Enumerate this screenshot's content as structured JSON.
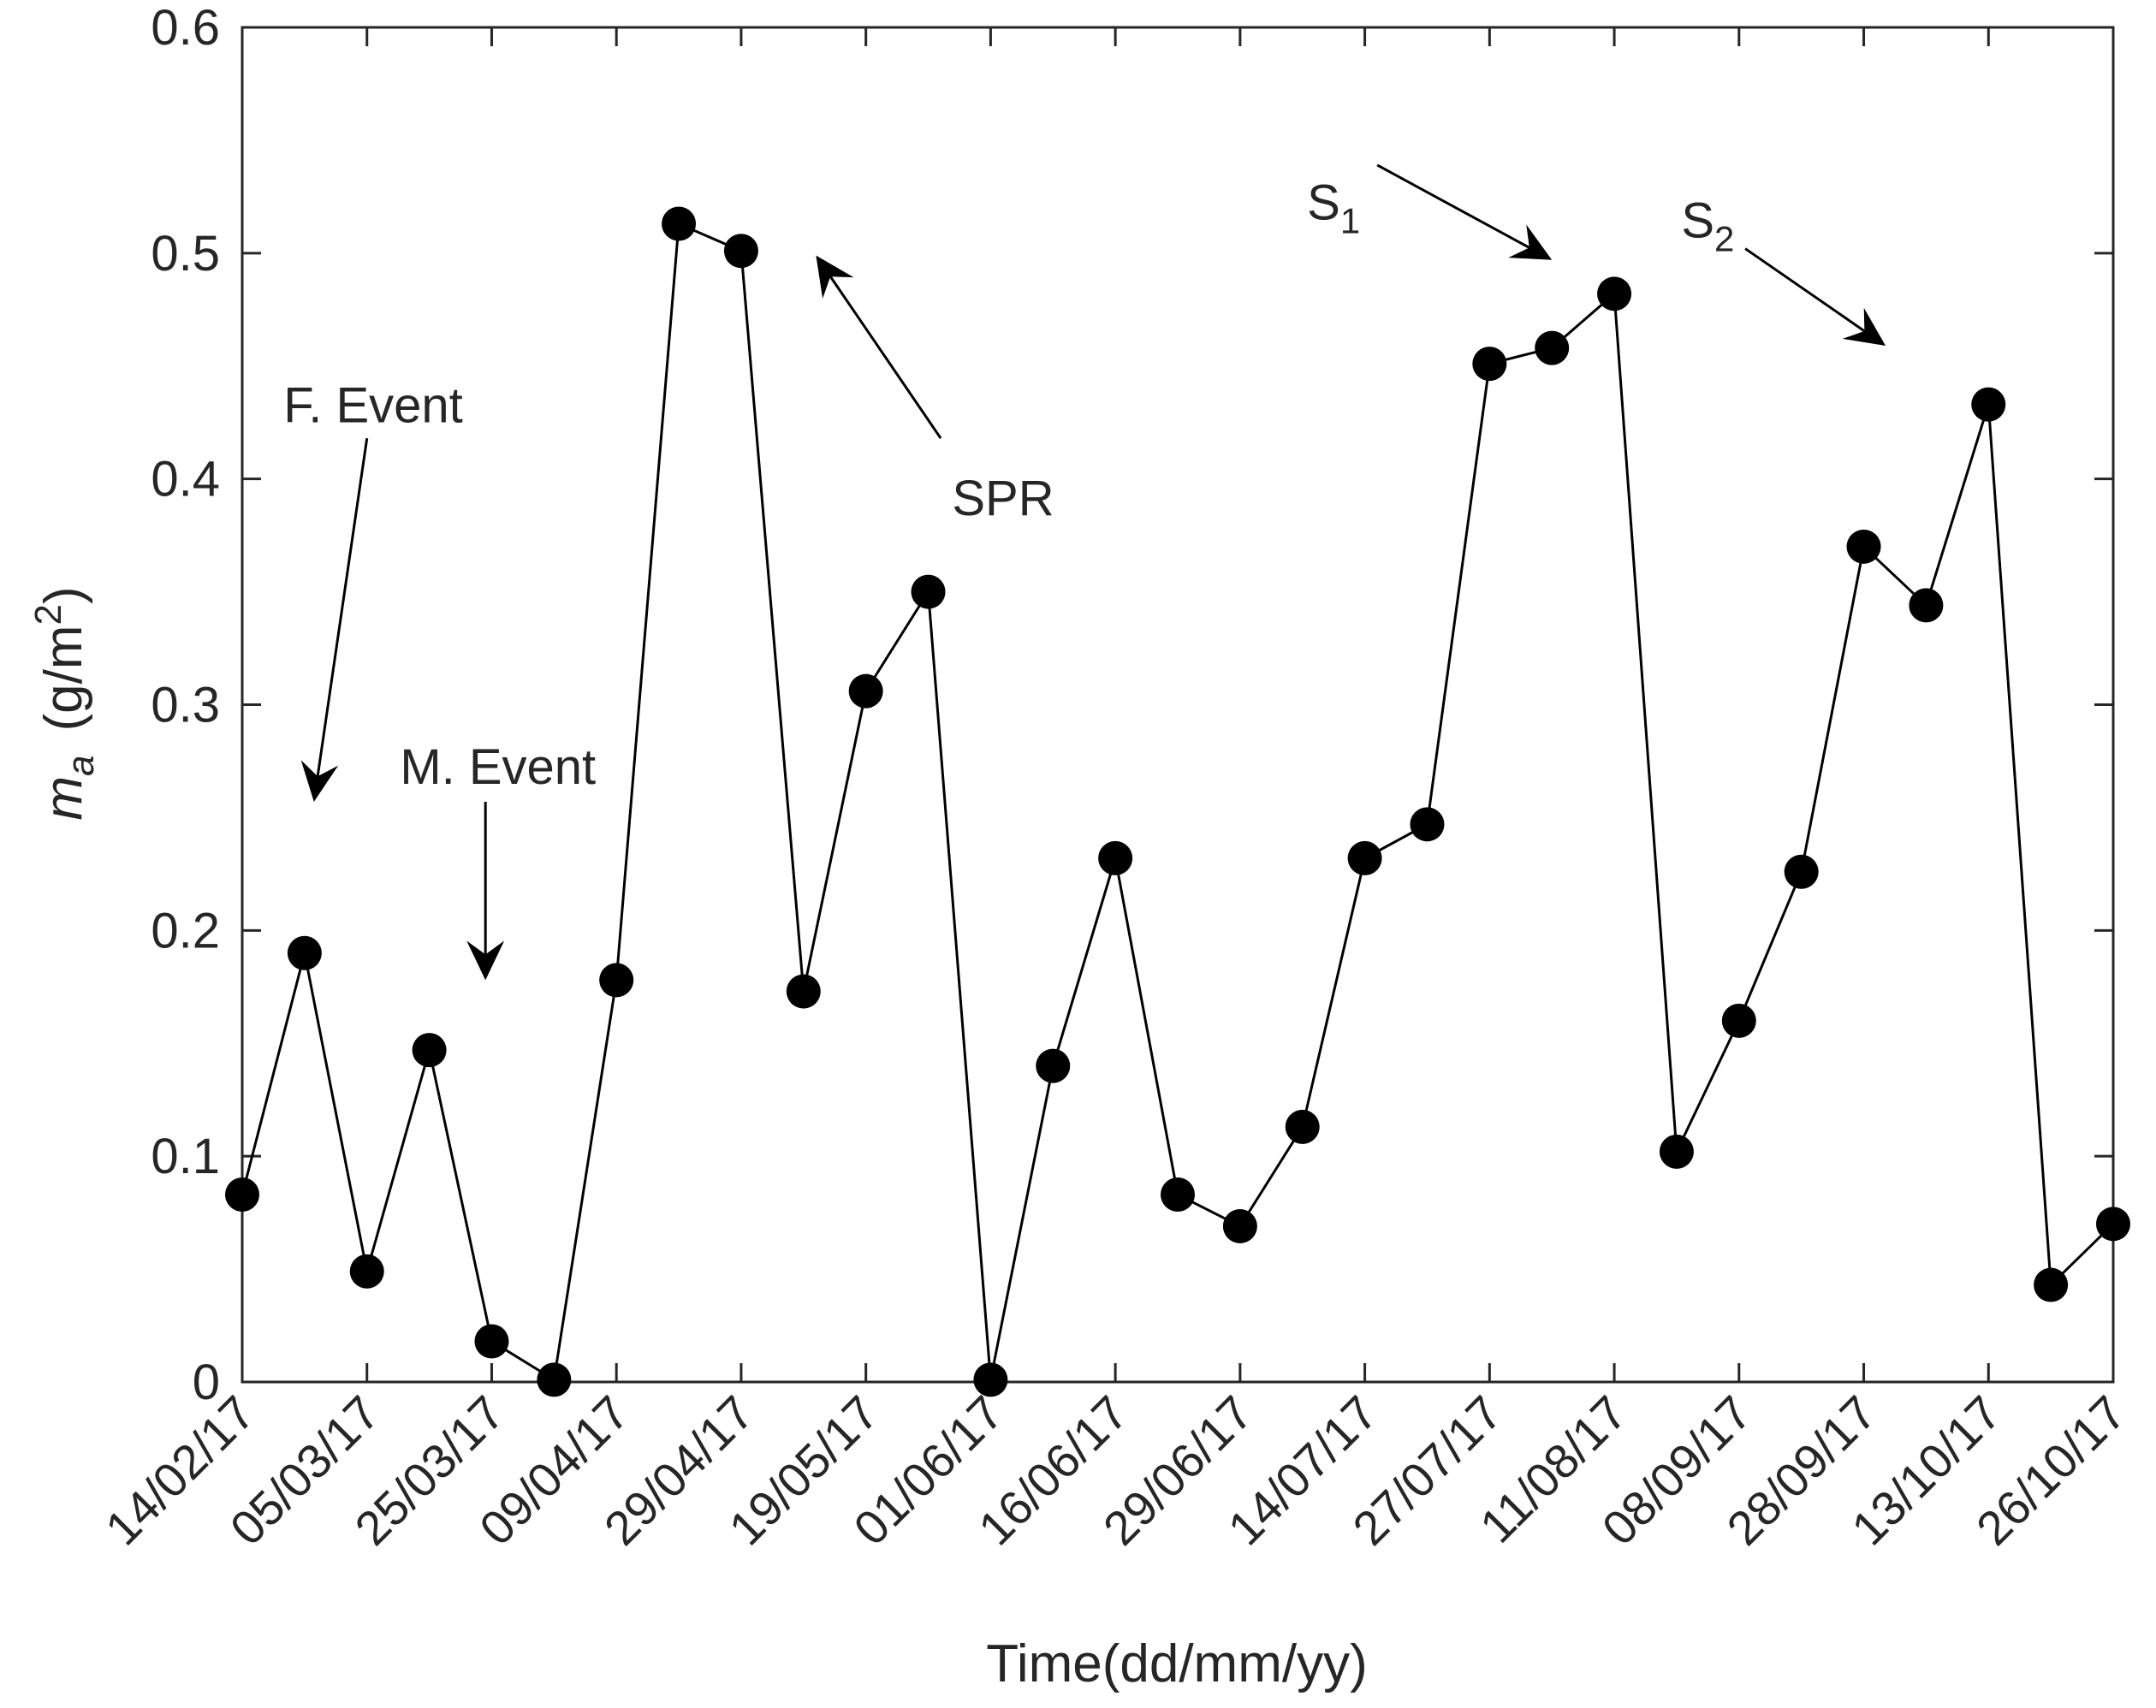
{
  "chart_data": {
    "type": "line",
    "title": "",
    "xlabel": "Time(dd/mm/yy)",
    "ylabel": {
      "symbol": "m",
      "subscript": "a",
      "unit_pre": "(g/m",
      "unit_sup": "2",
      "unit_post": ")"
    },
    "ylim": [
      0,
      0.6
    ],
    "yticks": [
      0,
      0.1,
      0.2,
      0.3,
      0.4,
      0.5,
      0.6
    ],
    "ytick_labels": [
      "0",
      "0.1",
      "0.2",
      "0.3",
      "0.4",
      "0.5",
      "0.6"
    ],
    "x_index_range": [
      0,
      30
    ],
    "xtick_index": [
      0,
      2,
      4,
      6,
      8,
      10,
      12,
      14,
      16,
      18,
      20,
      22,
      24,
      26,
      28,
      30
    ],
    "xtick_labels": [
      "14/02/17",
      "05/03/17",
      "25/03/17",
      "09/04/17",
      "29/04/17",
      "19/05/17",
      "01/06/17",
      "16/06/17",
      "29/06/17",
      "14/07/17",
      "27/07/17",
      "11/08/17",
      "08/09/17",
      "28/09/17",
      "13/10/17",
      "26/10/17"
    ],
    "series": [
      {
        "name": "m_a",
        "marker": "filled-circle",
        "color": "#000000",
        "values": [
          0.083,
          0.19,
          0.049,
          0.147,
          0.018,
          0.001,
          0.178,
          0.513,
          0.501,
          0.173,
          0.306,
          0.35,
          0.001,
          0.14,
          0.232,
          0.083,
          0.069,
          0.113,
          0.232,
          0.247,
          0.451,
          0.458,
          0.482,
          0.102,
          0.16,
          0.226,
          0.37,
          0.344,
          0.433,
          0.043,
          0.07
        ]
      }
    ],
    "annotations": [
      {
        "id": "f-event",
        "text": "F. Event",
        "sub": "",
        "text_x_index": 2.1,
        "text_y": 0.425,
        "arrow_from": [
          2.0,
          0.418
        ],
        "arrow_to": [
          1.15,
          0.257
        ]
      },
      {
        "id": "m-event",
        "text": "M. Event",
        "sub": "",
        "text_x_index": 4.1,
        "text_y": 0.265,
        "arrow_from": [
          3.9,
          0.257
        ],
        "arrow_to": [
          3.9,
          0.178
        ]
      },
      {
        "id": "spr",
        "text": "SPR",
        "sub": "",
        "text_x_index": 12.2,
        "text_y": 0.384,
        "arrow_from": [
          11.2,
          0.418
        ],
        "arrow_to": [
          9.2,
          0.499
        ]
      },
      {
        "id": "s1",
        "text": "S",
        "sub": "1",
        "text_x_index": 17.5,
        "text_y": 0.515,
        "arrow_from": [
          18.2,
          0.539
        ],
        "arrow_to": [
          21.0,
          0.497
        ]
      },
      {
        "id": "s2",
        "text": "S",
        "sub": "2",
        "text_x_index": 23.5,
        "text_y": 0.507,
        "arrow_from": [
          24.1,
          0.502
        ],
        "arrow_to": [
          26.35,
          0.459
        ]
      }
    ],
    "grid": false,
    "box": true,
    "legend": "none"
  }
}
